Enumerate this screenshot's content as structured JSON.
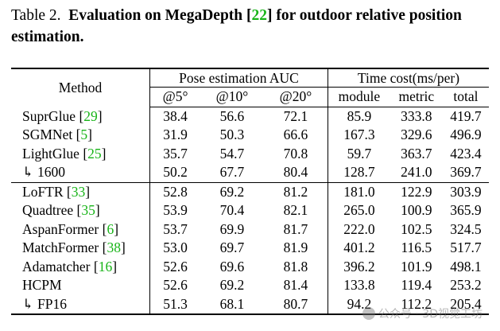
{
  "caption": {
    "label": "Table 2.",
    "title_part1": "Evaluation on MegaDepth [",
    "ref": "22",
    "title_part2": "] for outdoor relative position estimation."
  },
  "table": {
    "header": {
      "method": "Method",
      "group_pose": "Pose estimation AUC",
      "group_time": "Time cost(ms/per)",
      "pose_cols": [
        "@5°",
        "@10°",
        "@20°"
      ],
      "time_cols": [
        "module",
        "metric",
        "total"
      ]
    },
    "group1": [
      {
        "name": "SuprGlue",
        "ref": "29",
        "vals": [
          "38.4",
          "56.6",
          "72.1",
          "85.9",
          "333.8",
          "419.7"
        ]
      },
      {
        "name": "SGMNet",
        "ref": "5",
        "vals": [
          "31.9",
          "50.3",
          "66.6",
          "167.3",
          "329.6",
          "496.9"
        ]
      },
      {
        "name": "LightGlue",
        "ref": "25",
        "vals": [
          "35.7",
          "54.7",
          "70.8",
          "59.7",
          "363.7",
          "423.4"
        ]
      },
      {
        "name": "↳ 1600",
        "ref": "",
        "vals": [
          "50.2",
          "67.7",
          "80.4",
          "128.7",
          "241.0",
          "369.7"
        ]
      }
    ],
    "group2": [
      {
        "name": "LoFTR",
        "ref": "33",
        "vals": [
          "52.8",
          "69.2",
          "81.2",
          "181.0",
          "122.9",
          "303.9"
        ]
      },
      {
        "name": "Quadtree",
        "ref": "35",
        "vals": [
          "53.9",
          "70.4",
          "82.1",
          "265.0",
          "100.9",
          "365.9"
        ]
      },
      {
        "name": "AspanFormer",
        "ref": "6",
        "vals": [
          "53.7",
          "69.9",
          "81.7",
          "222.0",
          "102.5",
          "324.5"
        ]
      },
      {
        "name": "MatchFormer",
        "ref": "38",
        "vals": [
          "53.0",
          "69.7",
          "81.9",
          "401.2",
          "116.5",
          "517.7"
        ]
      },
      {
        "name": "Adamatcher",
        "ref": "16",
        "vals": [
          "52.6",
          "69.6",
          "81.8",
          "396.2",
          "101.9",
          "498.1"
        ]
      },
      {
        "name": "HCPM",
        "ref": "",
        "vals": [
          "52.6",
          "69.2",
          "81.4",
          "133.8",
          "119.4",
          "253.2"
        ]
      },
      {
        "name": "↳ FP16",
        "ref": "",
        "vals": [
          "51.3",
          "68.1",
          "80.7",
          "94.2",
          "112.2",
          "205.4"
        ]
      }
    ]
  },
  "watermark": "公众号 · 3D视觉工坊",
  "colors": {
    "ref": "#18b418",
    "text": "#000000"
  }
}
